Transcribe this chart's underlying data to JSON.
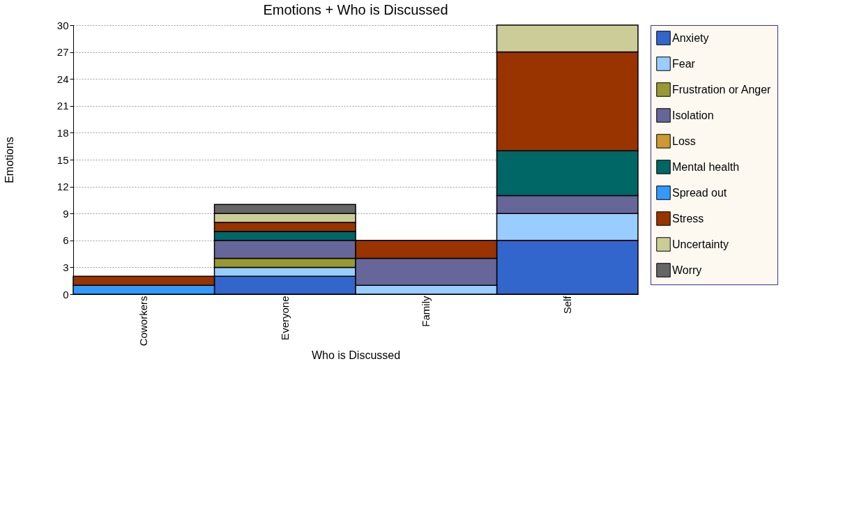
{
  "chart_data": {
    "type": "bar",
    "title": "Emotions + Who is Discussed",
    "xlabel": "Who is Discussed",
    "ylabel": "Emotions",
    "categories": [
      "Coworkers",
      "Everyone",
      "Family",
      "Self"
    ],
    "series": [
      {
        "name": "Anxiety",
        "color": "#3366cc",
        "values": [
          0,
          2,
          0,
          6
        ]
      },
      {
        "name": "Fear",
        "color": "#99ccff",
        "values": [
          0,
          1,
          1,
          3
        ]
      },
      {
        "name": "Frustration or Anger",
        "color": "#999933",
        "values": [
          0,
          1,
          0,
          0
        ]
      },
      {
        "name": "Isolation",
        "color": "#666699",
        "values": [
          0,
          2,
          3,
          2
        ]
      },
      {
        "name": "Loss",
        "color": "#cc9933",
        "values": [
          0,
          0,
          0,
          0
        ]
      },
      {
        "name": "Mental health",
        "color": "#006666",
        "values": [
          0,
          1,
          0,
          5
        ]
      },
      {
        "name": "Spread out",
        "color": "#3399ff",
        "values": [
          1,
          0,
          0,
          0
        ]
      },
      {
        "name": "Stress",
        "color": "#993300",
        "values": [
          1,
          1,
          2,
          11
        ]
      },
      {
        "name": "Uncertainty",
        "color": "#cccc99",
        "values": [
          0,
          1,
          0,
          3
        ]
      },
      {
        "name": "Worry",
        "color": "#666666",
        "values": [
          0,
          1,
          0,
          0
        ]
      }
    ],
    "stacked": true,
    "ylim": [
      0,
      30
    ],
    "yticks": [
      0,
      3,
      6,
      9,
      12,
      15,
      18,
      21,
      24,
      27,
      30
    ],
    "grid": "y",
    "legend": "right"
  }
}
